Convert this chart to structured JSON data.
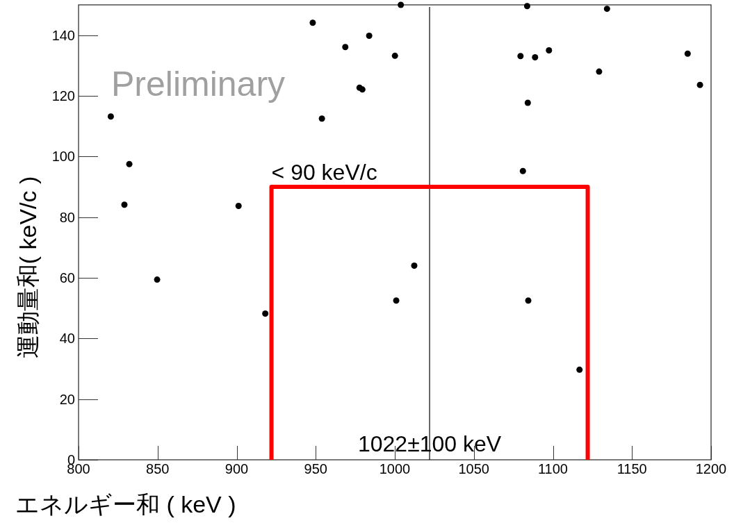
{
  "chart_data": {
    "type": "scatter",
    "xlabel": "エネルギー和 ( keV )",
    "ylabel": "運動量和( keV/c )",
    "xlim": [
      800,
      1200
    ],
    "ylim": [
      0,
      150
    ],
    "xticks": [
      800,
      850,
      900,
      950,
      1000,
      1050,
      1100,
      1150,
      1200
    ],
    "yticks": [
      0,
      20,
      40,
      60,
      80,
      100,
      120,
      140
    ],
    "grid": false,
    "legend": false,
    "marker": "circle",
    "series": [
      {
        "type": "scatter",
        "color": "#000000",
        "x": [
          820.4,
          832.1,
          829.0,
          901.2,
          948.1,
          983.8,
          968.7,
          1000.1,
          977.7,
          979.5,
          953.9,
          1003.8,
          1083.7,
          1134.2,
          1079.5,
          1088.7,
          1097.5,
          1185.2,
          1129.2,
          1193.0,
          1084.1,
          1081.0,
          849.7,
          918.1,
          1000.9,
          1012.3,
          1084.4,
          1116.8
        ],
        "values": [
          113.2,
          97.5,
          84.1,
          83.7,
          144.1,
          139.8,
          136.1,
          133.2,
          122.7,
          122.1,
          112.5,
          150,
          149.6,
          148.7,
          133.1,
          132.7,
          135.0,
          133.9,
          128.0,
          123.6,
          117.7,
          95.2,
          59.4,
          48.2,
          52.5,
          64.0,
          52.5,
          29.7
        ]
      },
      {
        "type": "line",
        "color": "#ff0000",
        "marker": "none",
        "x": [
          922,
          922,
          1122,
          1122
        ],
        "values": [
          0,
          90,
          90,
          0
        ]
      }
    ],
    "ref_lines": [
      {
        "axis": "x",
        "value": 1022,
        "color": "#000000"
      }
    ],
    "annotations": [
      "Preliminary",
      {
        "text": "< 90 keV/c",
        "x": 922,
        "y": 90
      },
      {
        "text": "1022±100 keV",
        "x": 1022,
        "y": 0
      }
    ]
  }
}
